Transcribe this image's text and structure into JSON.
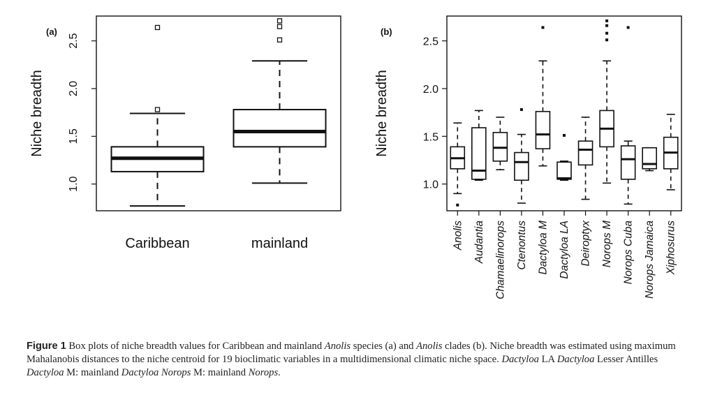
{
  "chart_data": [
    {
      "panel_label": "(a)",
      "type": "boxplot",
      "ylabel": "Niche breadth",
      "yticks": [
        "1.0",
        "1.5",
        "2.0",
        "2.5"
      ],
      "ylim": [
        0.72,
        2.76
      ],
      "categories": [
        "Caribbean",
        "mainland"
      ],
      "boxes": [
        {
          "category": "Caribbean",
          "whisker_low": 0.77,
          "q1": 1.13,
          "median": 1.27,
          "q3": 1.39,
          "whisker_high": 1.74,
          "outliers": [
            1.78,
            2.64
          ]
        },
        {
          "category": "mainland",
          "whisker_low": 1.01,
          "q1": 1.39,
          "median": 1.55,
          "q3": 1.78,
          "whisker_high": 2.29,
          "outliers": [
            2.51,
            2.65,
            2.71
          ]
        }
      ]
    },
    {
      "panel_label": "(b)",
      "type": "boxplot",
      "ylabel": "Niche breadth",
      "yticks": [
        "1.0",
        "1.5",
        "2.0",
        "2.5"
      ],
      "ylim": [
        0.72,
        2.76
      ],
      "categories": [
        "Anolis",
        "Audantia",
        "Chamaelinorops",
        "Ctenontus",
        "Dactyloa M",
        "Dactyloa LA",
        "Deiroptyx",
        "Norops M",
        "Norops Cuba",
        "Norops Jamaica",
        "Xiphosurus"
      ],
      "boxes": [
        {
          "category": "Anolis",
          "whisker_low": 0.9,
          "q1": 1.16,
          "median": 1.27,
          "q3": 1.39,
          "whisker_high": 1.64,
          "outliers": [
            0.78
          ]
        },
        {
          "category": "Audantia",
          "whisker_low": 1.04,
          "q1": 1.05,
          "median": 1.14,
          "q3": 1.59,
          "whisker_high": 1.77,
          "outliers": []
        },
        {
          "category": "Chamaelinorops",
          "whisker_low": 1.15,
          "q1": 1.24,
          "median": 1.38,
          "q3": 1.54,
          "whisker_high": 1.7,
          "outliers": []
        },
        {
          "category": "Ctenontus",
          "whisker_low": 0.8,
          "q1": 1.04,
          "median": 1.23,
          "q3": 1.33,
          "whisker_high": 1.52,
          "outliers": [
            1.78
          ]
        },
        {
          "category": "Dactyloa M",
          "whisker_low": 1.19,
          "q1": 1.37,
          "median": 1.52,
          "q3": 1.76,
          "whisker_high": 2.29,
          "outliers": [
            2.64
          ]
        },
        {
          "category": "Dactyloa LA",
          "whisker_low": 1.04,
          "q1": 1.05,
          "median": 1.06,
          "q3": 1.23,
          "whisker_high": 1.24,
          "outliers": [
            1.51
          ]
        },
        {
          "category": "Deiroptyx",
          "whisker_low": 0.84,
          "q1": 1.2,
          "median": 1.36,
          "q3": 1.45,
          "whisker_high": 1.7,
          "outliers": []
        },
        {
          "category": "Norops M",
          "whisker_low": 1.01,
          "q1": 1.39,
          "median": 1.58,
          "q3": 1.77,
          "whisker_high": 2.29,
          "outliers": [
            2.51,
            2.58,
            2.66,
            2.71
          ]
        },
        {
          "category": "Norops Cuba",
          "whisker_low": 0.79,
          "q1": 1.05,
          "median": 1.26,
          "q3": 1.4,
          "whisker_high": 1.45,
          "outliers": [
            2.64
          ]
        },
        {
          "category": "Norops Jamaica",
          "whisker_low": 1.14,
          "q1": 1.16,
          "median": 1.21,
          "q3": 1.38,
          "whisker_high": 1.38,
          "outliers": []
        },
        {
          "category": "Xiphosurus",
          "whisker_low": 0.94,
          "q1": 1.16,
          "median": 1.33,
          "q3": 1.49,
          "whisker_high": 1.73,
          "outliers": []
        }
      ]
    }
  ],
  "caption": {
    "label": "Figure 1",
    "t1": " Box plots of niche breadth values for Caribbean and mainland ",
    "i1": "Anolis",
    "t2": " species (a) and ",
    "i2": "Anolis",
    "t3": " clades (b). Niche breadth was estimated using maximum Mahalanobis distances to the niche centroid for 19 bioclimatic variables in a multidimensional climatic niche space. ",
    "i3": "Dactyloa",
    "t4": " LA ",
    "i4": "Dactyloa",
    "t5": " Lesser Antilles ",
    "i5": "Dactyloa",
    "t6": " M: mainland ",
    "i6": "Dactyloa Norops",
    "t7": " M: mainland ",
    "i7": "Norops",
    "t8": "."
  }
}
